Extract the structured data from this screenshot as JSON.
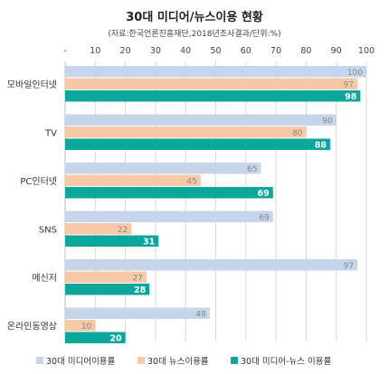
{
  "chart_data": {
    "type": "bar",
    "orientation": "horizontal",
    "title": "30대 미디어/뉴스이용 현황",
    "subtitle": "(자료:한국언론진흥재단,2018년조사결과/단위:%)",
    "x_ticks": [
      "-",
      "10",
      "20",
      "30",
      "40",
      "50",
      "60",
      "70",
      "80",
      "90",
      "100"
    ],
    "xlim": [
      0,
      100
    ],
    "categories": [
      "모바일인터넷",
      "TV",
      "PC인터넷",
      "SNS",
      "메신저",
      "온라인동영상"
    ],
    "series": [
      {
        "name": "30대 미디어이용률",
        "color": "#c5d6ec",
        "values": [
          100,
          90,
          65,
          69,
          97,
          48
        ]
      },
      {
        "name": "30대 뉴스이용률",
        "color": "#f7c9a6",
        "values": [
          97,
          80,
          45,
          22,
          27,
          10
        ]
      },
      {
        "name": "30대 미디어-뉴스 이용률",
        "color": "#0aa79a",
        "values": [
          98,
          88,
          69,
          31,
          28,
          20
        ]
      }
    ],
    "legend_position": "bottom",
    "grid": true
  }
}
